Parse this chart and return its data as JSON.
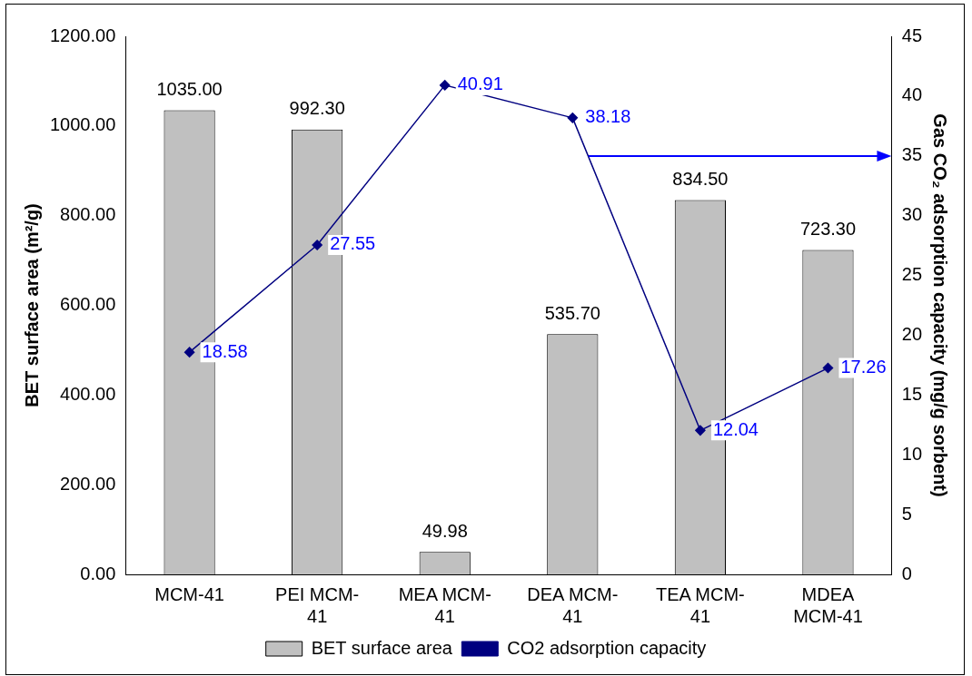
{
  "chart_data": {
    "type": "bar",
    "ylabel": "BET surface area (m²/g)",
    "y2label": "Gas CO₂ adsorption capacity (mg/g sorbent)",
    "categories": [
      "MCM-41",
      "PEI MCM-41",
      "MEA MCM-41",
      "DEA MCM-41",
      "TEA MCM-41",
      "MDEA MCM-41"
    ],
    "series": [
      {
        "name": "BET surface area",
        "color": "#c0c0c0",
        "values": [
          1035.0,
          992.3,
          49.98,
          535.7,
          834.5,
          723.3
        ],
        "value_labels": [
          "1035.00",
          "992.30",
          "49.98",
          "535.70",
          "834.50",
          "723.30"
        ]
      },
      {
        "name": "CO2 adsorption capacity",
        "type": "line",
        "axis": "y2",
        "color": "#000080",
        "values": [
          18.58,
          27.55,
          40.91,
          38.18,
          12.04,
          17.26
        ],
        "value_labels": [
          "18.58",
          "27.55",
          "40.91",
          "38.18",
          "12.04",
          "17.26"
        ]
      }
    ],
    "ylim": [
      0,
      1200
    ],
    "yticks": [
      {
        "value": 0,
        "label": "0.00"
      },
      {
        "value": 200,
        "label": "200.00"
      },
      {
        "value": 400,
        "label": "400.00"
      },
      {
        "value": 600,
        "label": "600.00"
      },
      {
        "value": 800,
        "label": "800.00"
      },
      {
        "value": 1000,
        "label": "1000.00"
      },
      {
        "value": 1200,
        "label": "1200.00"
      }
    ],
    "y2lim": [
      0,
      45
    ],
    "y2ticks": [
      0,
      5,
      10,
      15,
      20,
      25,
      30,
      35,
      40,
      45
    ],
    "grid": false,
    "legend": "bottom",
    "marker": "diamond",
    "line_style": "solid"
  }
}
